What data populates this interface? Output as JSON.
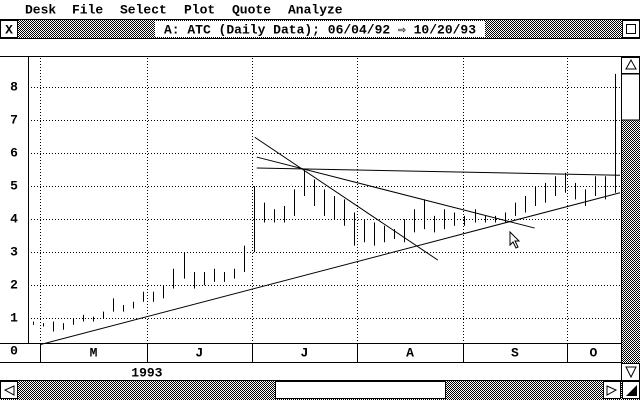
{
  "menu": [
    "Desk",
    "File",
    "Select",
    "Plot",
    "Quote",
    "Analyze"
  ],
  "window_title": "A: ATC (Daily Data); 06/04/92 ⇨ 10/20/93",
  "chart_data": {
    "type": "hlc",
    "x": [
      1,
      3,
      5,
      7,
      9,
      11,
      13,
      15,
      17,
      19,
      21,
      23,
      25,
      27,
      29,
      31,
      33,
      35,
      37,
      39,
      41,
      43,
      45,
      47,
      49,
      51,
      53,
      55,
      57,
      59,
      61,
      63,
      65,
      67,
      69,
      71,
      73,
      75,
      77,
      79,
      81,
      83,
      85,
      87,
      89,
      91,
      93,
      95,
      97,
      99,
      101,
      103,
      105,
      107,
      109,
      111,
      113,
      115,
      117
    ],
    "high": [
      0.9,
      0.85,
      0.9,
      0.85,
      1.0,
      1.1,
      1.05,
      1.2,
      1.6,
      1.4,
      1.5,
      1.8,
      1.8,
      2.0,
      2.5,
      3.0,
      2.4,
      2.4,
      2.5,
      2.4,
      2.5,
      3.2,
      5.0,
      4.5,
      4.3,
      4.4,
      4.9,
      5.5,
      5.2,
      4.9,
      4.7,
      4.6,
      4.2,
      4.0,
      3.9,
      3.8,
      3.7,
      4.0,
      4.3,
      4.6,
      4.1,
      4.3,
      4.2,
      4.1,
      4.3,
      4.1,
      4.1,
      4.2,
      4.5,
      4.7,
      5.0,
      5.1,
      5.3,
      5.4,
      5.1,
      4.9,
      5.3,
      5.3,
      8.4
    ],
    "low": [
      0.8,
      0.75,
      0.6,
      0.65,
      0.8,
      0.9,
      0.9,
      1.0,
      1.2,
      1.2,
      1.3,
      1.5,
      1.5,
      1.6,
      1.9,
      2.2,
      1.9,
      2.0,
      2.1,
      2.1,
      2.2,
      2.4,
      3.0,
      3.9,
      3.9,
      3.9,
      4.1,
      4.7,
      4.4,
      4.1,
      4.0,
      3.8,
      3.2,
      3.3,
      3.2,
      3.3,
      3.4,
      3.3,
      3.6,
      3.7,
      3.6,
      3.7,
      3.8,
      3.8,
      3.9,
      3.9,
      3.9,
      3.9,
      4.1,
      4.2,
      4.4,
      4.5,
      4.7,
      4.8,
      4.6,
      4.4,
      4.7,
      4.6,
      4.8
    ],
    "xlim": [
      0,
      118
    ],
    "xticks": [
      2.4,
      23.7,
      44.6,
      65.6,
      86.7,
      107.4
    ],
    "months": [
      "M",
      "J",
      "J",
      "A",
      "S",
      "O"
    ],
    "year_label": "1993",
    "ylim": [
      0.25,
      8.88
    ],
    "yticks": [
      0,
      1,
      2,
      3,
      4,
      5,
      6,
      7,
      8
    ],
    "grid": true,
    "color": "#000000",
    "trendlines": [
      {
        "x": [
          2.4,
          118
        ],
        "y": [
          0.2,
          4.8
        ]
      },
      {
        "x": [
          45.2,
          81.7
        ],
        "y": [
          6.48,
          2.76
        ]
      },
      {
        "x": [
          45.6,
          101
        ],
        "y": [
          5.88,
          3.73
        ]
      },
      {
        "x": [
          45.6,
          118
        ],
        "y": [
          5.55,
          5.33
        ]
      }
    ]
  }
}
